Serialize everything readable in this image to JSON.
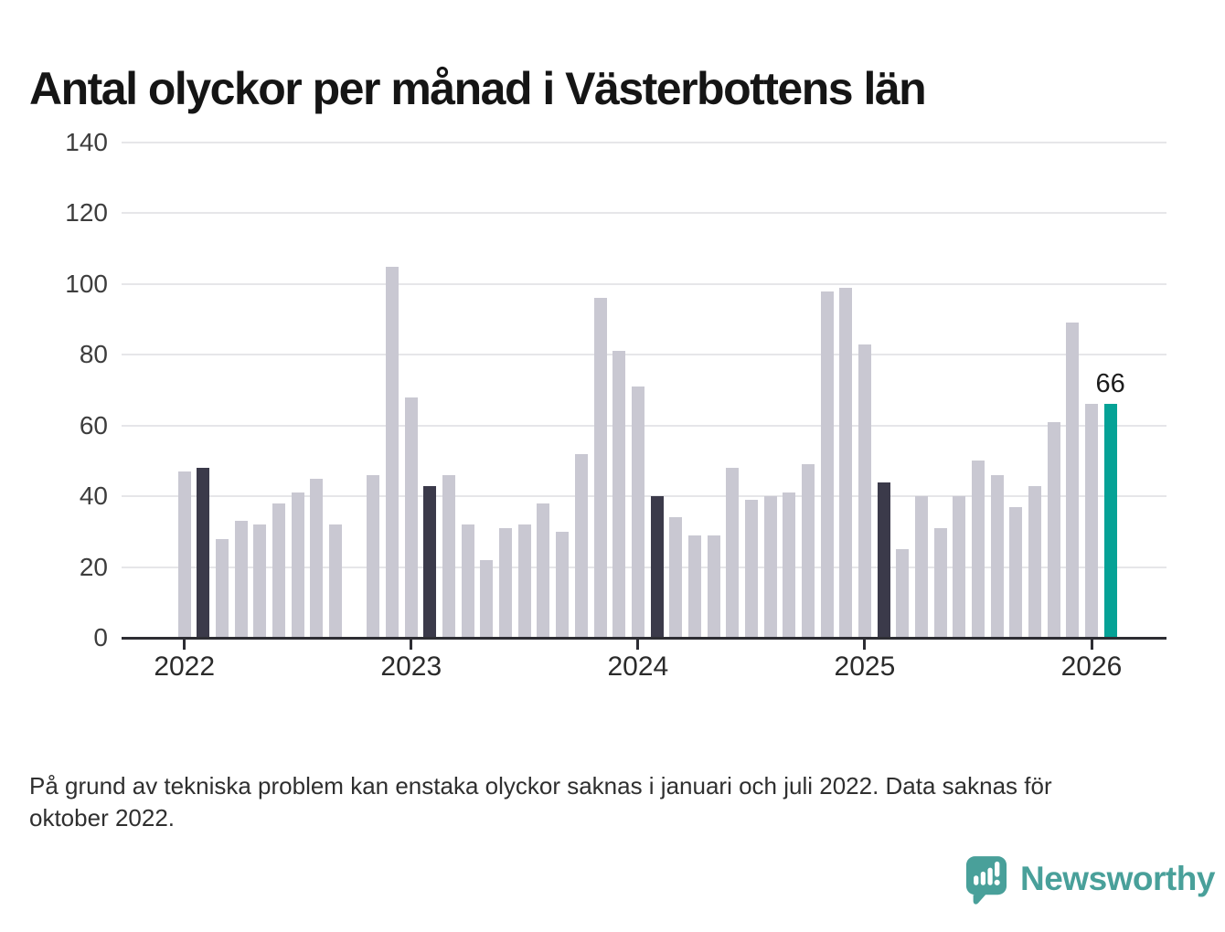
{
  "title": "Antal olyckor per månad i Västerbottens län",
  "footnote": {
    "line1": "På grund av tekniska problem kan enstaka olyckor saknas i januari och juli 2022. Data saknas för",
    "line2": "oktober 2022."
  },
  "logo": {
    "name": "Newsworthy",
    "icon": "chart-speech-bubble-icon"
  },
  "colors": {
    "bar_base": "#c9c8d2",
    "bar_highlight_dark": "#3b3a4a",
    "bar_accent_teal": "#05a296",
    "gridline": "#e6e6e9",
    "axis": "#2d2d33",
    "title_text": "#151515",
    "logo_teal": "#49a09a"
  },
  "chart_data": {
    "type": "bar",
    "title": "Antal olyckor per månad i Västerbottens län",
    "xlabel": "",
    "ylabel": "",
    "ylim": [
      0,
      140
    ],
    "yticks": [
      0,
      20,
      40,
      60,
      80,
      100,
      120,
      140
    ],
    "year_ticks": [
      "2022",
      "2023",
      "2024",
      "2025",
      "2026"
    ],
    "grid": true,
    "legend": false,
    "current_value_label": "66",
    "months": [
      {
        "m": "2022-01",
        "v": 47,
        "k": "base"
      },
      {
        "m": "2022-02",
        "v": 48,
        "k": "dark"
      },
      {
        "m": "2022-03",
        "v": 28,
        "k": "base"
      },
      {
        "m": "2022-04",
        "v": 33,
        "k": "base"
      },
      {
        "m": "2022-05",
        "v": 32,
        "k": "base"
      },
      {
        "m": "2022-06",
        "v": 38,
        "k": "base"
      },
      {
        "m": "2022-07",
        "v": 41,
        "k": "base"
      },
      {
        "m": "2022-08",
        "v": 45,
        "k": "base"
      },
      {
        "m": "2022-09",
        "v": 32,
        "k": "base"
      },
      {
        "m": "2022-10",
        "v": null,
        "k": "missing"
      },
      {
        "m": "2022-11",
        "v": 46,
        "k": "base"
      },
      {
        "m": "2022-12",
        "v": 105,
        "k": "base"
      },
      {
        "m": "2023-01",
        "v": 68,
        "k": "base"
      },
      {
        "m": "2023-02",
        "v": 43,
        "k": "dark"
      },
      {
        "m": "2023-03",
        "v": 46,
        "k": "base"
      },
      {
        "m": "2023-04",
        "v": 32,
        "k": "base"
      },
      {
        "m": "2023-05",
        "v": 22,
        "k": "base"
      },
      {
        "m": "2023-06",
        "v": 31,
        "k": "base"
      },
      {
        "m": "2023-07",
        "v": 32,
        "k": "base"
      },
      {
        "m": "2023-08",
        "v": 38,
        "k": "base"
      },
      {
        "m": "2023-09",
        "v": 30,
        "k": "base"
      },
      {
        "m": "2023-10",
        "v": 52,
        "k": "base"
      },
      {
        "m": "2023-11",
        "v": 96,
        "k": "base"
      },
      {
        "m": "2023-12",
        "v": 81,
        "k": "base"
      },
      {
        "m": "2024-01",
        "v": 71,
        "k": "base"
      },
      {
        "m": "2024-02",
        "v": 40,
        "k": "dark"
      },
      {
        "m": "2024-03",
        "v": 34,
        "k": "base"
      },
      {
        "m": "2024-04",
        "v": 29,
        "k": "base"
      },
      {
        "m": "2024-05",
        "v": 29,
        "k": "base"
      },
      {
        "m": "2024-06",
        "v": 48,
        "k": "base"
      },
      {
        "m": "2024-07",
        "v": 39,
        "k": "base"
      },
      {
        "m": "2024-08",
        "v": 40,
        "k": "base"
      },
      {
        "m": "2024-09",
        "v": 41,
        "k": "base"
      },
      {
        "m": "2024-10",
        "v": 49,
        "k": "base"
      },
      {
        "m": "2024-11",
        "v": 98,
        "k": "base"
      },
      {
        "m": "2024-12",
        "v": 99,
        "k": "base"
      },
      {
        "m": "2025-01",
        "v": 83,
        "k": "base"
      },
      {
        "m": "2025-02",
        "v": 44,
        "k": "dark"
      },
      {
        "m": "2025-03",
        "v": 25,
        "k": "base"
      },
      {
        "m": "2025-04",
        "v": 40,
        "k": "base"
      },
      {
        "m": "2025-05",
        "v": 31,
        "k": "base"
      },
      {
        "m": "2025-06",
        "v": 40,
        "k": "base"
      },
      {
        "m": "2025-07",
        "v": 50,
        "k": "base"
      },
      {
        "m": "2025-08",
        "v": 46,
        "k": "base"
      },
      {
        "m": "2025-09",
        "v": 37,
        "k": "base"
      },
      {
        "m": "2025-10",
        "v": 43,
        "k": "base"
      },
      {
        "m": "2025-11",
        "v": 61,
        "k": "base"
      },
      {
        "m": "2025-12",
        "v": 89,
        "k": "base"
      },
      {
        "m": "2026-01",
        "v": 66,
        "k": "base"
      },
      {
        "m": "2026-02",
        "v": 66,
        "k": "accent"
      }
    ]
  }
}
